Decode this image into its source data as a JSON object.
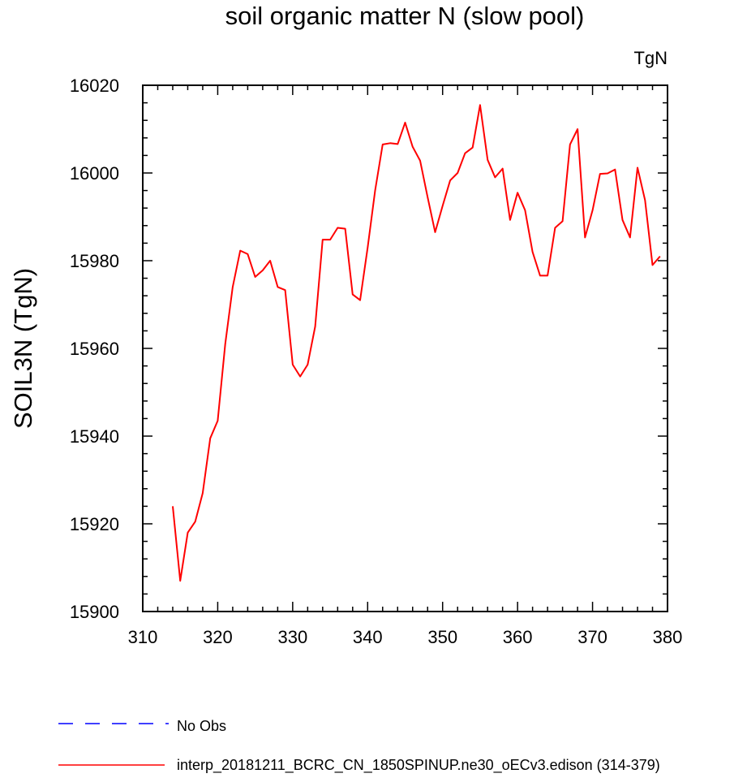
{
  "chart_data": {
    "type": "line",
    "title": "soil organic matter N (slow pool)",
    "units_label": "TgN",
    "xlabel": "",
    "ylabel": "SOIL3N  (TgN)",
    "xlim": [
      310,
      380
    ],
    "ylim": [
      15900,
      16020
    ],
    "xticks": [
      310,
      320,
      330,
      340,
      350,
      360,
      370,
      380
    ],
    "yticks": [
      15900,
      15920,
      15940,
      15960,
      15980,
      16000,
      16020
    ],
    "xtick_labels": [
      "310",
      "320",
      "330",
      "340",
      "350",
      "360",
      "370",
      "380"
    ],
    "ytick_labels": [
      "15900",
      "15920",
      "15940",
      "15960",
      "15980",
      "16000",
      "16020"
    ],
    "grid": false,
    "legend_position": "bottom-left",
    "series": [
      {
        "name": "No Obs",
        "color": "#0000ff",
        "style": "dashed",
        "x": [],
        "y": []
      },
      {
        "name": "interp_20181211_BCRC_CN_1850SPINUP.ne30_oECv3.edison (314-379)",
        "color": "#ff0000",
        "style": "solid",
        "x": [
          314,
          315,
          316,
          317,
          318,
          319,
          320,
          321,
          322,
          323,
          324,
          325,
          326,
          327,
          328,
          329,
          330,
          331,
          332,
          333,
          334,
          335,
          336,
          337,
          338,
          339,
          340,
          341,
          342,
          343,
          344,
          345,
          346,
          347,
          348,
          349,
          350,
          351,
          352,
          353,
          354,
          355,
          356,
          357,
          358,
          359,
          360,
          361,
          362,
          363,
          364,
          365,
          366,
          367,
          368,
          369,
          370,
          371,
          372,
          373,
          374,
          375,
          376,
          377,
          378,
          379
        ],
        "y": [
          15924,
          15907,
          15918,
          15920.5,
          15927,
          15939.5,
          15943.5,
          15961,
          15974,
          15982.3,
          15981.5,
          15976.3,
          15977.8,
          15980,
          15974,
          15973.3,
          15956.3,
          15953.6,
          15956.3,
          15965,
          15984.8,
          15984.8,
          15987.5,
          15987.3,
          15972.3,
          15971,
          15983,
          15996,
          16006.5,
          16006.8,
          16006.6,
          16011.5,
          16006,
          16002.8,
          15994.5,
          15986.5,
          15992.5,
          15998.3,
          16000,
          16004.5,
          16005.8,
          16015.5,
          16003,
          15999,
          16001,
          15989.3,
          15995.5,
          15991.5,
          15982,
          15976.6,
          15976.6,
          15987.5,
          15989,
          16006.5,
          16010,
          15985.3,
          15991.5,
          15999.8,
          15999.9,
          16000.8,
          15989.3,
          15985.3,
          16001.2,
          15993.8,
          15979,
          15981
        ]
      }
    ]
  }
}
